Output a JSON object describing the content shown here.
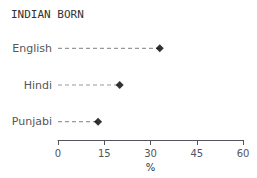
{
  "chart_data": {
    "type": "lollipop",
    "title": "INDIAN BORN",
    "categories": [
      "English",
      "Hindi",
      "Punjabi"
    ],
    "values": [
      33,
      20,
      13
    ],
    "orientation": "horizontal",
    "xlabel": "%",
    "xlim": [
      0,
      60
    ],
    "xticks": [
      0,
      15,
      30,
      45,
      60
    ],
    "color": "#000000",
    "marker": "diamond",
    "line_style": "dashed",
    "grid": false
  }
}
